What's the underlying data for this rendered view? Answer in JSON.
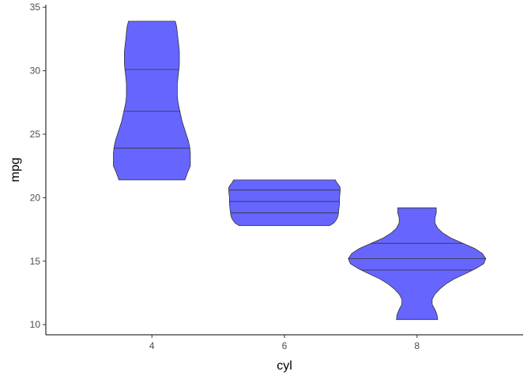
{
  "chart_data": {
    "type": "violin",
    "xlabel": "cyl",
    "ylabel": "mpg",
    "categories": [
      "4",
      "6",
      "8"
    ],
    "ylim": [
      9.2,
      35.2
    ],
    "yticks": [
      "10",
      "15",
      "20",
      "25",
      "30",
      "35"
    ],
    "grid": false,
    "legend": "none",
    "fill_color": "#6666ff",
    "stroke_color": "#333333",
    "violins": [
      {
        "category": "4",
        "min": 21.4,
        "max": 33.9,
        "quantiles": [
          23.9,
          26.8,
          30.1
        ],
        "profile": [
          [
            21.4,
            0.48
          ],
          [
            22.0,
            0.52
          ],
          [
            22.5,
            0.56
          ],
          [
            23.0,
            0.56
          ],
          [
            23.5,
            0.56
          ],
          [
            24.0,
            0.55
          ],
          [
            24.5,
            0.53
          ],
          [
            25.0,
            0.5
          ],
          [
            25.5,
            0.47
          ],
          [
            26.0,
            0.44
          ],
          [
            26.5,
            0.42
          ],
          [
            27.0,
            0.4
          ],
          [
            27.5,
            0.38
          ],
          [
            28.0,
            0.37
          ],
          [
            28.5,
            0.37
          ],
          [
            29.0,
            0.37
          ],
          [
            29.5,
            0.38
          ],
          [
            30.0,
            0.39
          ],
          [
            30.5,
            0.4
          ],
          [
            31.0,
            0.4
          ],
          [
            31.5,
            0.4
          ],
          [
            32.0,
            0.39
          ],
          [
            32.5,
            0.38
          ],
          [
            33.0,
            0.37
          ],
          [
            33.5,
            0.36
          ],
          [
            33.9,
            0.34
          ]
        ]
      },
      {
        "category": "6",
        "min": 17.8,
        "max": 21.4,
        "quantiles": [
          18.8,
          19.7,
          20.6
        ],
        "profile": [
          [
            17.8,
            0.66
          ],
          [
            18.0,
            0.72
          ],
          [
            18.3,
            0.76
          ],
          [
            18.6,
            0.78
          ],
          [
            19.0,
            0.79
          ],
          [
            19.5,
            0.8
          ],
          [
            20.0,
            0.8
          ],
          [
            20.5,
            0.81
          ],
          [
            20.8,
            0.81
          ],
          [
            21.0,
            0.79
          ],
          [
            21.2,
            0.76
          ],
          [
            21.4,
            0.74
          ]
        ]
      },
      {
        "category": "8",
        "min": 10.4,
        "max": 19.2,
        "quantiles": [
          14.3,
          15.2,
          16.4
        ],
        "profile": [
          [
            10.4,
            0.3
          ],
          [
            10.8,
            0.29
          ],
          [
            11.2,
            0.26
          ],
          [
            11.6,
            0.22
          ],
          [
            12.0,
            0.22
          ],
          [
            12.4,
            0.26
          ],
          [
            12.8,
            0.33
          ],
          [
            13.2,
            0.42
          ],
          [
            13.6,
            0.54
          ],
          [
            14.0,
            0.7
          ],
          [
            14.4,
            0.85
          ],
          [
            14.8,
            0.97
          ],
          [
            15.2,
            1.0
          ],
          [
            15.6,
            0.95
          ],
          [
            16.0,
            0.84
          ],
          [
            16.4,
            0.67
          ],
          [
            16.8,
            0.5
          ],
          [
            17.2,
            0.38
          ],
          [
            17.6,
            0.3
          ],
          [
            18.0,
            0.26
          ],
          [
            18.4,
            0.26
          ],
          [
            18.8,
            0.28
          ],
          [
            19.2,
            0.28
          ]
        ]
      }
    ]
  }
}
